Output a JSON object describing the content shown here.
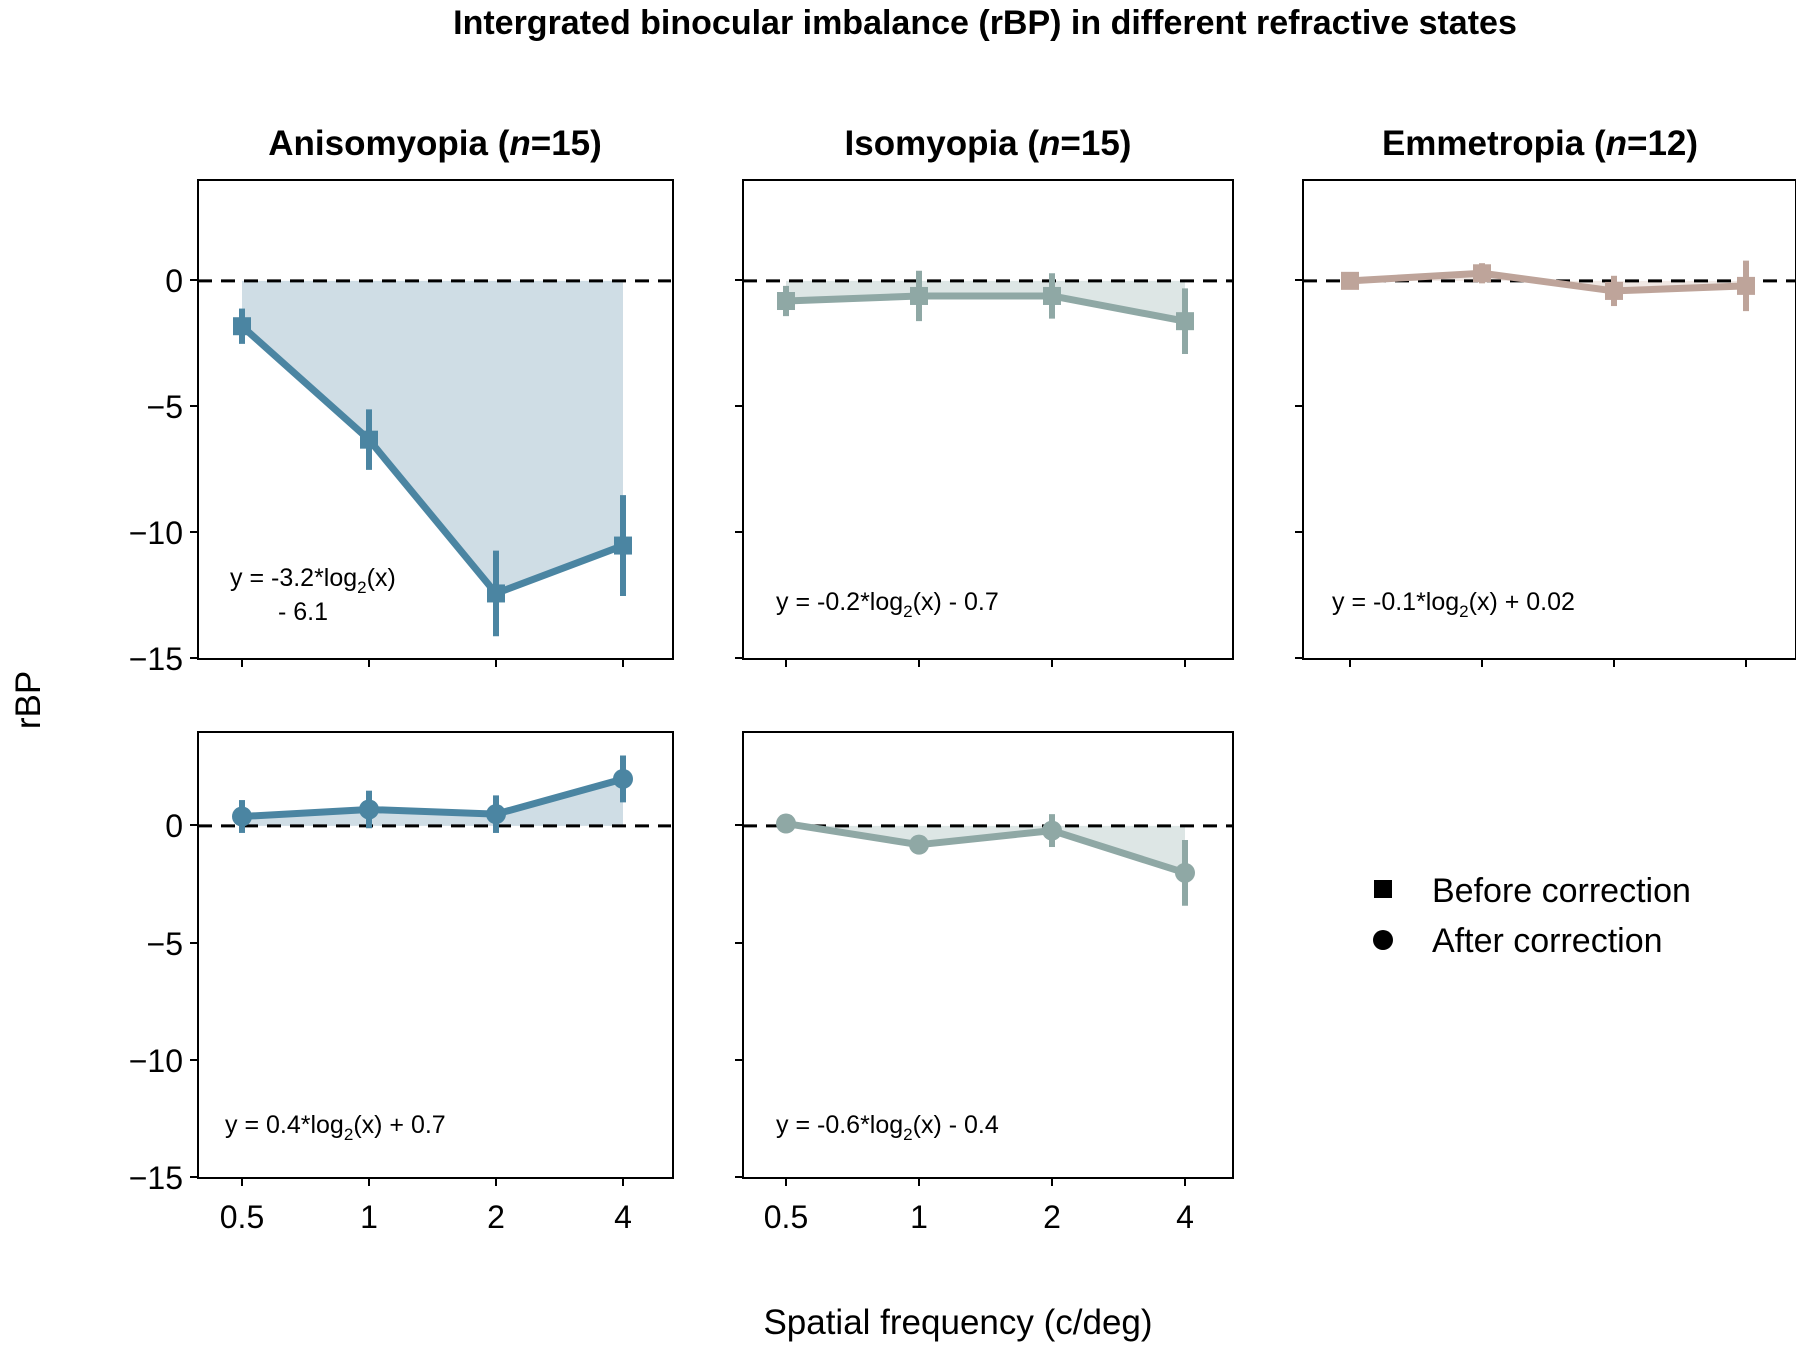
{
  "chart_data": {
    "type": "line",
    "title": "Intergrated binocular imbalance (rBP) in different refractive states",
    "xlabel": "Spatial frequency (c/deg)",
    "ylabel": "rBP",
    "x": [
      0.5,
      1,
      2,
      4
    ],
    "x_tick_labels": [
      "0.5",
      "1",
      "2",
      "4"
    ],
    "xscale": "log2",
    "ylim": [
      -15,
      4
    ],
    "y_ticks": [
      0,
      -5,
      -10,
      -15
    ],
    "y_tick_labels": [
      "0",
      "−5",
      "−10",
      "−15"
    ],
    "reference_line": 0,
    "legend": {
      "position": "right",
      "before_label": "Before correction",
      "after_label": "After correction"
    },
    "groups": [
      {
        "name": "Anisomyopia",
        "n_prefix": "Anisomyopia (",
        "n_italic": "n",
        "n_suffix": "=15)",
        "color": "#4b85a2",
        "fill": "#cfdde5",
        "before": {
          "values": [
            -1.8,
            -6.3,
            -12.4,
            -10.5
          ],
          "errors": [
            0.7,
            1.2,
            1.7,
            2.0
          ],
          "eq_main": "y = -3.2*log",
          "eq_sub": "2",
          "eq_tail": "(x)",
          "eq_line2": "- 6.1"
        },
        "after": {
          "values": [
            0.4,
            0.7,
            0.5,
            2.0
          ],
          "errors": [
            0.7,
            0.8,
            0.8,
            1.0
          ],
          "eq_main": "y = 0.4*log",
          "eq_sub": "2",
          "eq_tail": "(x) + 0.7"
        }
      },
      {
        "name": "Isomyopia",
        "n_prefix": "Isomyopia (",
        "n_italic": "n",
        "n_suffix": "=15)",
        "color": "#8fa8a5",
        "fill": "#dde6e5",
        "before": {
          "values": [
            -0.8,
            -0.6,
            -0.6,
            -1.6
          ],
          "errors": [
            0.6,
            1.0,
            0.9,
            1.3
          ],
          "eq_main": "y = -0.2*log",
          "eq_sub": "2",
          "eq_tail": "(x) - 0.7"
        },
        "after": {
          "values": [
            0.1,
            -0.8,
            -0.2,
            -2.0
          ],
          "errors": [
            0.3,
            0.4,
            0.7,
            1.4
          ],
          "eq_main": "y = -0.6*log",
          "eq_sub": "2",
          "eq_tail": "(x) - 0.4"
        }
      },
      {
        "name": "Emmetropia",
        "n_prefix": "Emmetropia (",
        "n_italic": "n",
        "n_suffix": "=12)",
        "color": "#bea49a",
        "fill": "#f0e8e4",
        "before": {
          "values": [
            0.0,
            0.3,
            -0.4,
            -0.2
          ],
          "errors": [
            0.3,
            0.4,
            0.6,
            1.0
          ],
          "eq_main": "y = -0.1*log",
          "eq_sub": "2",
          "eq_tail": "(x) + 0.02"
        }
      }
    ]
  }
}
